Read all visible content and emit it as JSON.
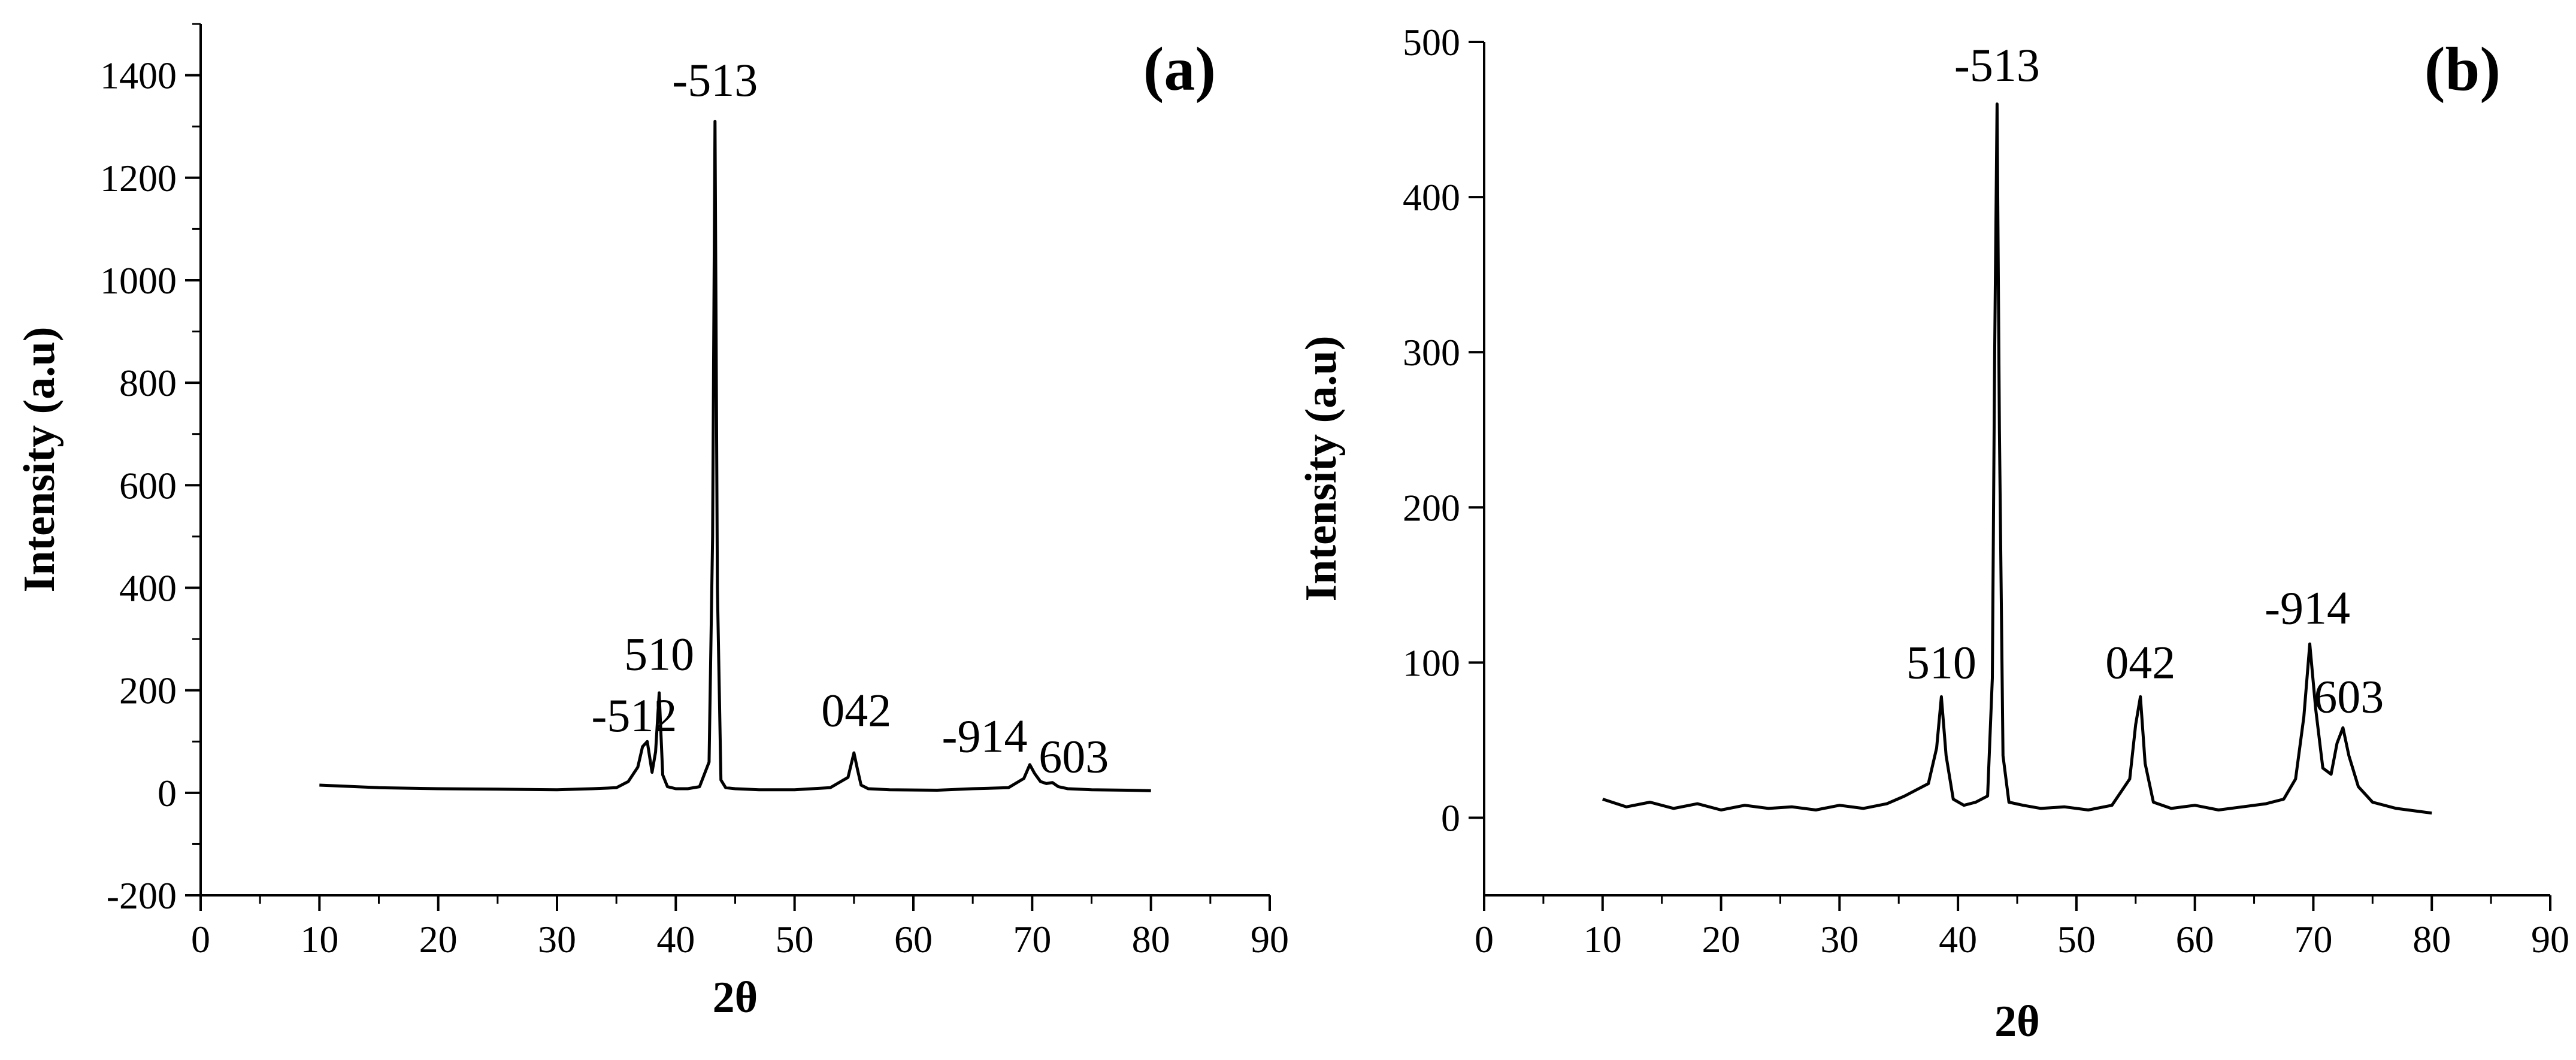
{
  "chart_data": [
    {
      "type": "line",
      "panel_label": "(a)",
      "xlabel": "2θ",
      "ylabel": "Intensity (a.u)",
      "xlim": [
        0,
        90
      ],
      "ylim": [
        -200,
        1500
      ],
      "xticks": [
        0,
        10,
        20,
        30,
        40,
        50,
        60,
        70,
        80,
        90
      ],
      "yticks": [
        -200,
        0,
        200,
        400,
        600,
        800,
        1000,
        1200,
        1400
      ],
      "grid": false,
      "legend": "none",
      "series": [
        {
          "x": [
            10,
            15,
            20,
            25,
            30,
            33,
            35,
            36,
            36.8,
            37.2,
            37.6,
            38.0,
            38.3,
            38.6,
            38.9,
            39.3,
            40,
            41,
            42,
            42.8,
            43.1,
            43.3,
            43.5,
            43.8,
            44.2,
            45,
            47,
            50,
            53,
            54.5,
            55.0,
            55.3,
            55.6,
            56.2,
            58,
            62,
            65,
            68,
            69.3,
            69.8,
            70.2,
            70.7,
            71.2,
            71.7,
            72.2,
            73,
            75,
            78,
            80
          ],
          "y": [
            15,
            10,
            8,
            7,
            6,
            8,
            10,
            22,
            50,
            90,
            100,
            40,
            80,
            195,
            35,
            12,
            8,
            8,
            12,
            60,
            500,
            1310,
            400,
            25,
            10,
            8,
            6,
            6,
            10,
            30,
            78,
            45,
            15,
            8,
            6,
            5,
            8,
            10,
            28,
            55,
            38,
            22,
            18,
            20,
            12,
            8,
            6,
            5,
            4
          ]
        }
      ],
      "annotations": [
        {
          "text": "-512",
          "x": 36.5,
          "y": 120
        },
        {
          "text": "510",
          "x": 38.6,
          "y": 240
        },
        {
          "text": "-513",
          "x": 43.3,
          "y": 1360
        },
        {
          "text": "042",
          "x": 55.2,
          "y": 130
        },
        {
          "text": "-914",
          "x": 66.0,
          "y": 80
        },
        {
          "text": "603",
          "x": 73.5,
          "y": 40
        }
      ]
    },
    {
      "type": "line",
      "panel_label": "(b)",
      "xlabel": "2θ",
      "ylabel": "Intensity (a.u)",
      "xlim": [
        0,
        90
      ],
      "ylim": [
        -50,
        500
      ],
      "xticks": [
        0,
        10,
        20,
        30,
        40,
        50,
        60,
        70,
        80,
        90
      ],
      "yticks": [
        0,
        100,
        200,
        300,
        400,
        500
      ],
      "grid": false,
      "legend": "none",
      "series": [
        {
          "x": [
            10,
            12,
            14,
            16,
            18,
            20,
            22,
            24,
            26,
            28,
            30,
            32,
            34,
            35.5,
            36.5,
            37.5,
            38.2,
            38.6,
            39.0,
            39.6,
            40.5,
            41.5,
            42.5,
            42.9,
            43.1,
            43.3,
            43.5,
            43.8,
            44.3,
            45.5,
            47,
            49,
            51,
            53,
            54.5,
            55.0,
            55.4,
            55.8,
            56.5,
            58,
            60,
            62,
            64,
            66,
            67.5,
            68.5,
            69.2,
            69.7,
            70.2,
            70.8,
            71.5,
            72.0,
            72.5,
            73.0,
            73.8,
            75,
            77,
            79,
            80
          ],
          "y": [
            12,
            7,
            10,
            6,
            9,
            5,
            8,
            6,
            7,
            5,
            8,
            6,
            9,
            14,
            18,
            22,
            45,
            78,
            40,
            12,
            8,
            10,
            14,
            90,
            300,
            460,
            250,
            40,
            10,
            8,
            6,
            7,
            5,
            8,
            25,
            60,
            78,
            35,
            10,
            6,
            8,
            5,
            7,
            9,
            12,
            25,
            65,
            112,
            70,
            32,
            28,
            48,
            58,
            40,
            20,
            10,
            6,
            4,
            3
          ]
        }
      ],
      "annotations": [
        {
          "text": "510",
          "x": 38.6,
          "y": 90
        },
        {
          "text": "-513",
          "x": 43.3,
          "y": 475
        },
        {
          "text": "042",
          "x": 55.4,
          "y": 90
        },
        {
          "text": "-914",
          "x": 69.5,
          "y": 125
        },
        {
          "text": "603",
          "x": 73.0,
          "y": 68
        }
      ]
    }
  ]
}
